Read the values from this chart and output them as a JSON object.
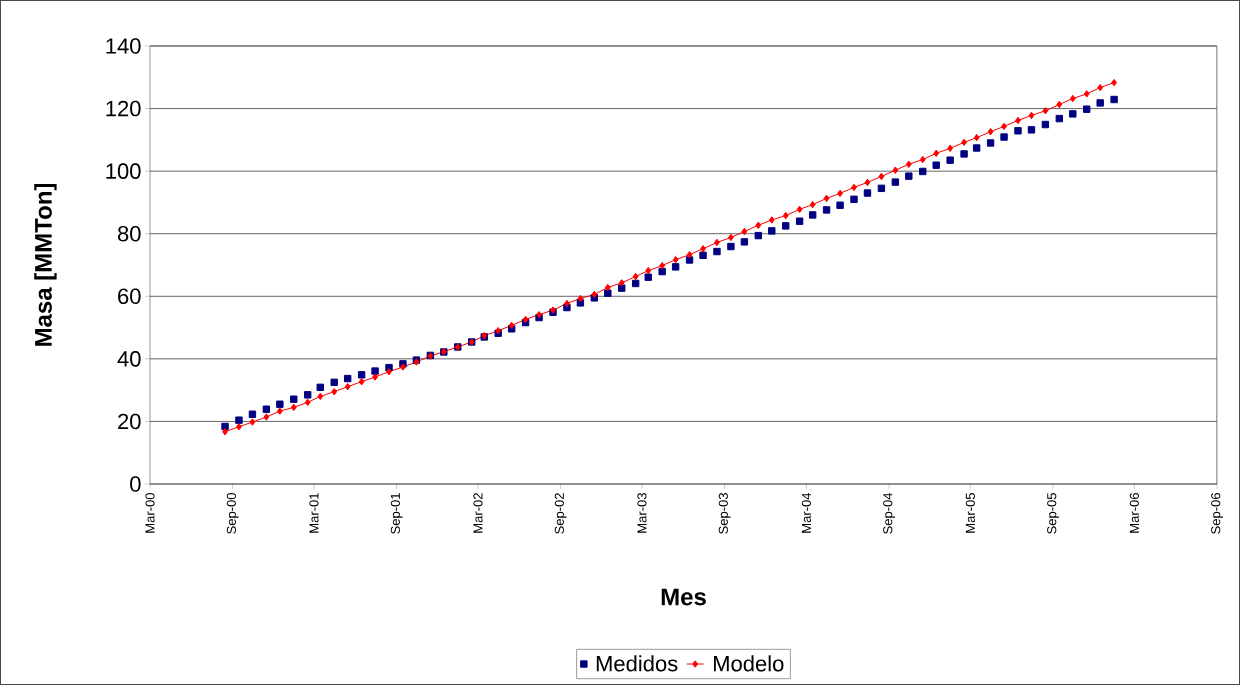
{
  "chart_data": {
    "type": "line",
    "xlabel": "Mes",
    "ylabel": "Masa [MMTon]",
    "x": [
      "2000-08-15",
      "2000-09-15",
      "2000-10-15",
      "2000-11-15",
      "2000-12-15",
      "2001-01-15",
      "2001-02-15",
      "2001-03-15",
      "2001-04-15",
      "2001-05-15",
      "2001-06-15",
      "2001-07-15",
      "2001-08-15",
      "2001-09-15",
      "2001-10-15",
      "2001-11-15",
      "2001-12-15",
      "2002-01-15",
      "2002-02-15",
      "2002-03-15",
      "2002-04-15",
      "2002-05-15",
      "2002-06-15",
      "2002-07-15",
      "2002-08-15",
      "2002-09-15",
      "2002-10-15",
      "2002-11-15",
      "2002-12-15",
      "2003-01-15",
      "2003-02-15",
      "2003-03-15",
      "2003-04-15",
      "2003-05-15",
      "2003-06-15",
      "2003-07-15",
      "2003-08-15",
      "2003-09-15",
      "2003-10-15",
      "2003-11-15",
      "2003-12-15",
      "2004-01-15",
      "2004-02-15",
      "2004-03-15",
      "2004-04-15",
      "2004-05-15",
      "2004-06-15",
      "2004-07-15",
      "2004-08-15",
      "2004-09-15",
      "2004-10-15",
      "2004-11-15",
      "2004-12-15",
      "2005-01-15",
      "2005-02-15",
      "2005-03-15",
      "2005-04-15",
      "2005-05-15",
      "2005-06-15",
      "2005-07-15",
      "2005-08-15",
      "2005-09-15",
      "2005-10-15",
      "2005-11-15",
      "2005-12-15",
      "2006-01-15"
    ],
    "series": [
      {
        "name": "Medidos",
        "type": "scatter",
        "marker": "square",
        "color": "#000080",
        "values": [
          18.4,
          20.4,
          22.3,
          23.9,
          25.5,
          27.1,
          28.5,
          30.9,
          32.5,
          33.7,
          34.9,
          36.1,
          37.2,
          38.4,
          39.6,
          41.1,
          42.2,
          43.8,
          45.4,
          47.0,
          48.2,
          49.6,
          51.6,
          53.2,
          54.9,
          56.4,
          57.9,
          59.5,
          61.0,
          62.6,
          64.1,
          66.1,
          67.9,
          69.4,
          71.6,
          73.1,
          74.3,
          75.9,
          77.4,
          79.4,
          80.9,
          82.5,
          84.0,
          86.0,
          87.6,
          89.1,
          91.0,
          93.0,
          94.5,
          96.5,
          98.4,
          99.9,
          101.9,
          103.5,
          105.5,
          107.4,
          109.0,
          110.9,
          112.9,
          113.2,
          114.9,
          116.8,
          118.3,
          119.8,
          121.8,
          122.9
        ]
      },
      {
        "name": "Modelo",
        "marker": "diamond",
        "color": "#ff0000",
        "values": [
          16.7,
          18.3,
          19.8,
          21.4,
          23.3,
          24.5,
          26.1,
          28.0,
          29.5,
          31.1,
          32.7,
          34.2,
          35.9,
          37.4,
          39.0,
          40.9,
          42.3,
          43.8,
          45.4,
          47.4,
          49.0,
          50.7,
          52.6,
          54.1,
          55.6,
          57.7,
          59.3,
          60.6,
          62.8,
          64.3,
          66.3,
          68.2,
          69.8,
          71.7,
          73.3,
          75.2,
          77.2,
          78.8,
          80.7,
          82.7,
          84.4,
          85.8,
          87.8,
          89.3,
          91.3,
          92.9,
          94.8,
          96.4,
          98.3,
          100.3,
          102.2,
          103.7,
          105.7,
          107.3,
          109.2,
          110.7,
          112.6,
          114.3,
          116.2,
          117.8,
          119.3,
          121.3,
          123.2,
          124.7,
          126.7,
          128.3
        ]
      }
    ],
    "xlim": [
      "2000-03-01",
      "2006-09-01"
    ],
    "xticks": [
      {
        "value": "2000-03-01",
        "label": "Mar-00"
      },
      {
        "value": "2000-09-01",
        "label": "Sep-00"
      },
      {
        "value": "2001-03-01",
        "label": "Mar-01"
      },
      {
        "value": "2001-09-01",
        "label": "Sep-01"
      },
      {
        "value": "2002-03-01",
        "label": "Mar-02"
      },
      {
        "value": "2002-09-01",
        "label": "Sep-02"
      },
      {
        "value": "2003-03-01",
        "label": "Mar-03"
      },
      {
        "value": "2003-09-01",
        "label": "Sep-03"
      },
      {
        "value": "2004-03-01",
        "label": "Mar-04"
      },
      {
        "value": "2004-09-01",
        "label": "Sep-04"
      },
      {
        "value": "2005-03-01",
        "label": "Mar-05"
      },
      {
        "value": "2005-09-01",
        "label": "Sep-05"
      },
      {
        "value": "2006-03-01",
        "label": "Mar-06"
      },
      {
        "value": "2006-09-01",
        "label": "Sep-06"
      }
    ],
    "ylim": [
      0,
      140
    ],
    "yticks": [
      0,
      20,
      40,
      60,
      80,
      100,
      120,
      140
    ],
    "grid": "y",
    "legend": "bottom"
  }
}
